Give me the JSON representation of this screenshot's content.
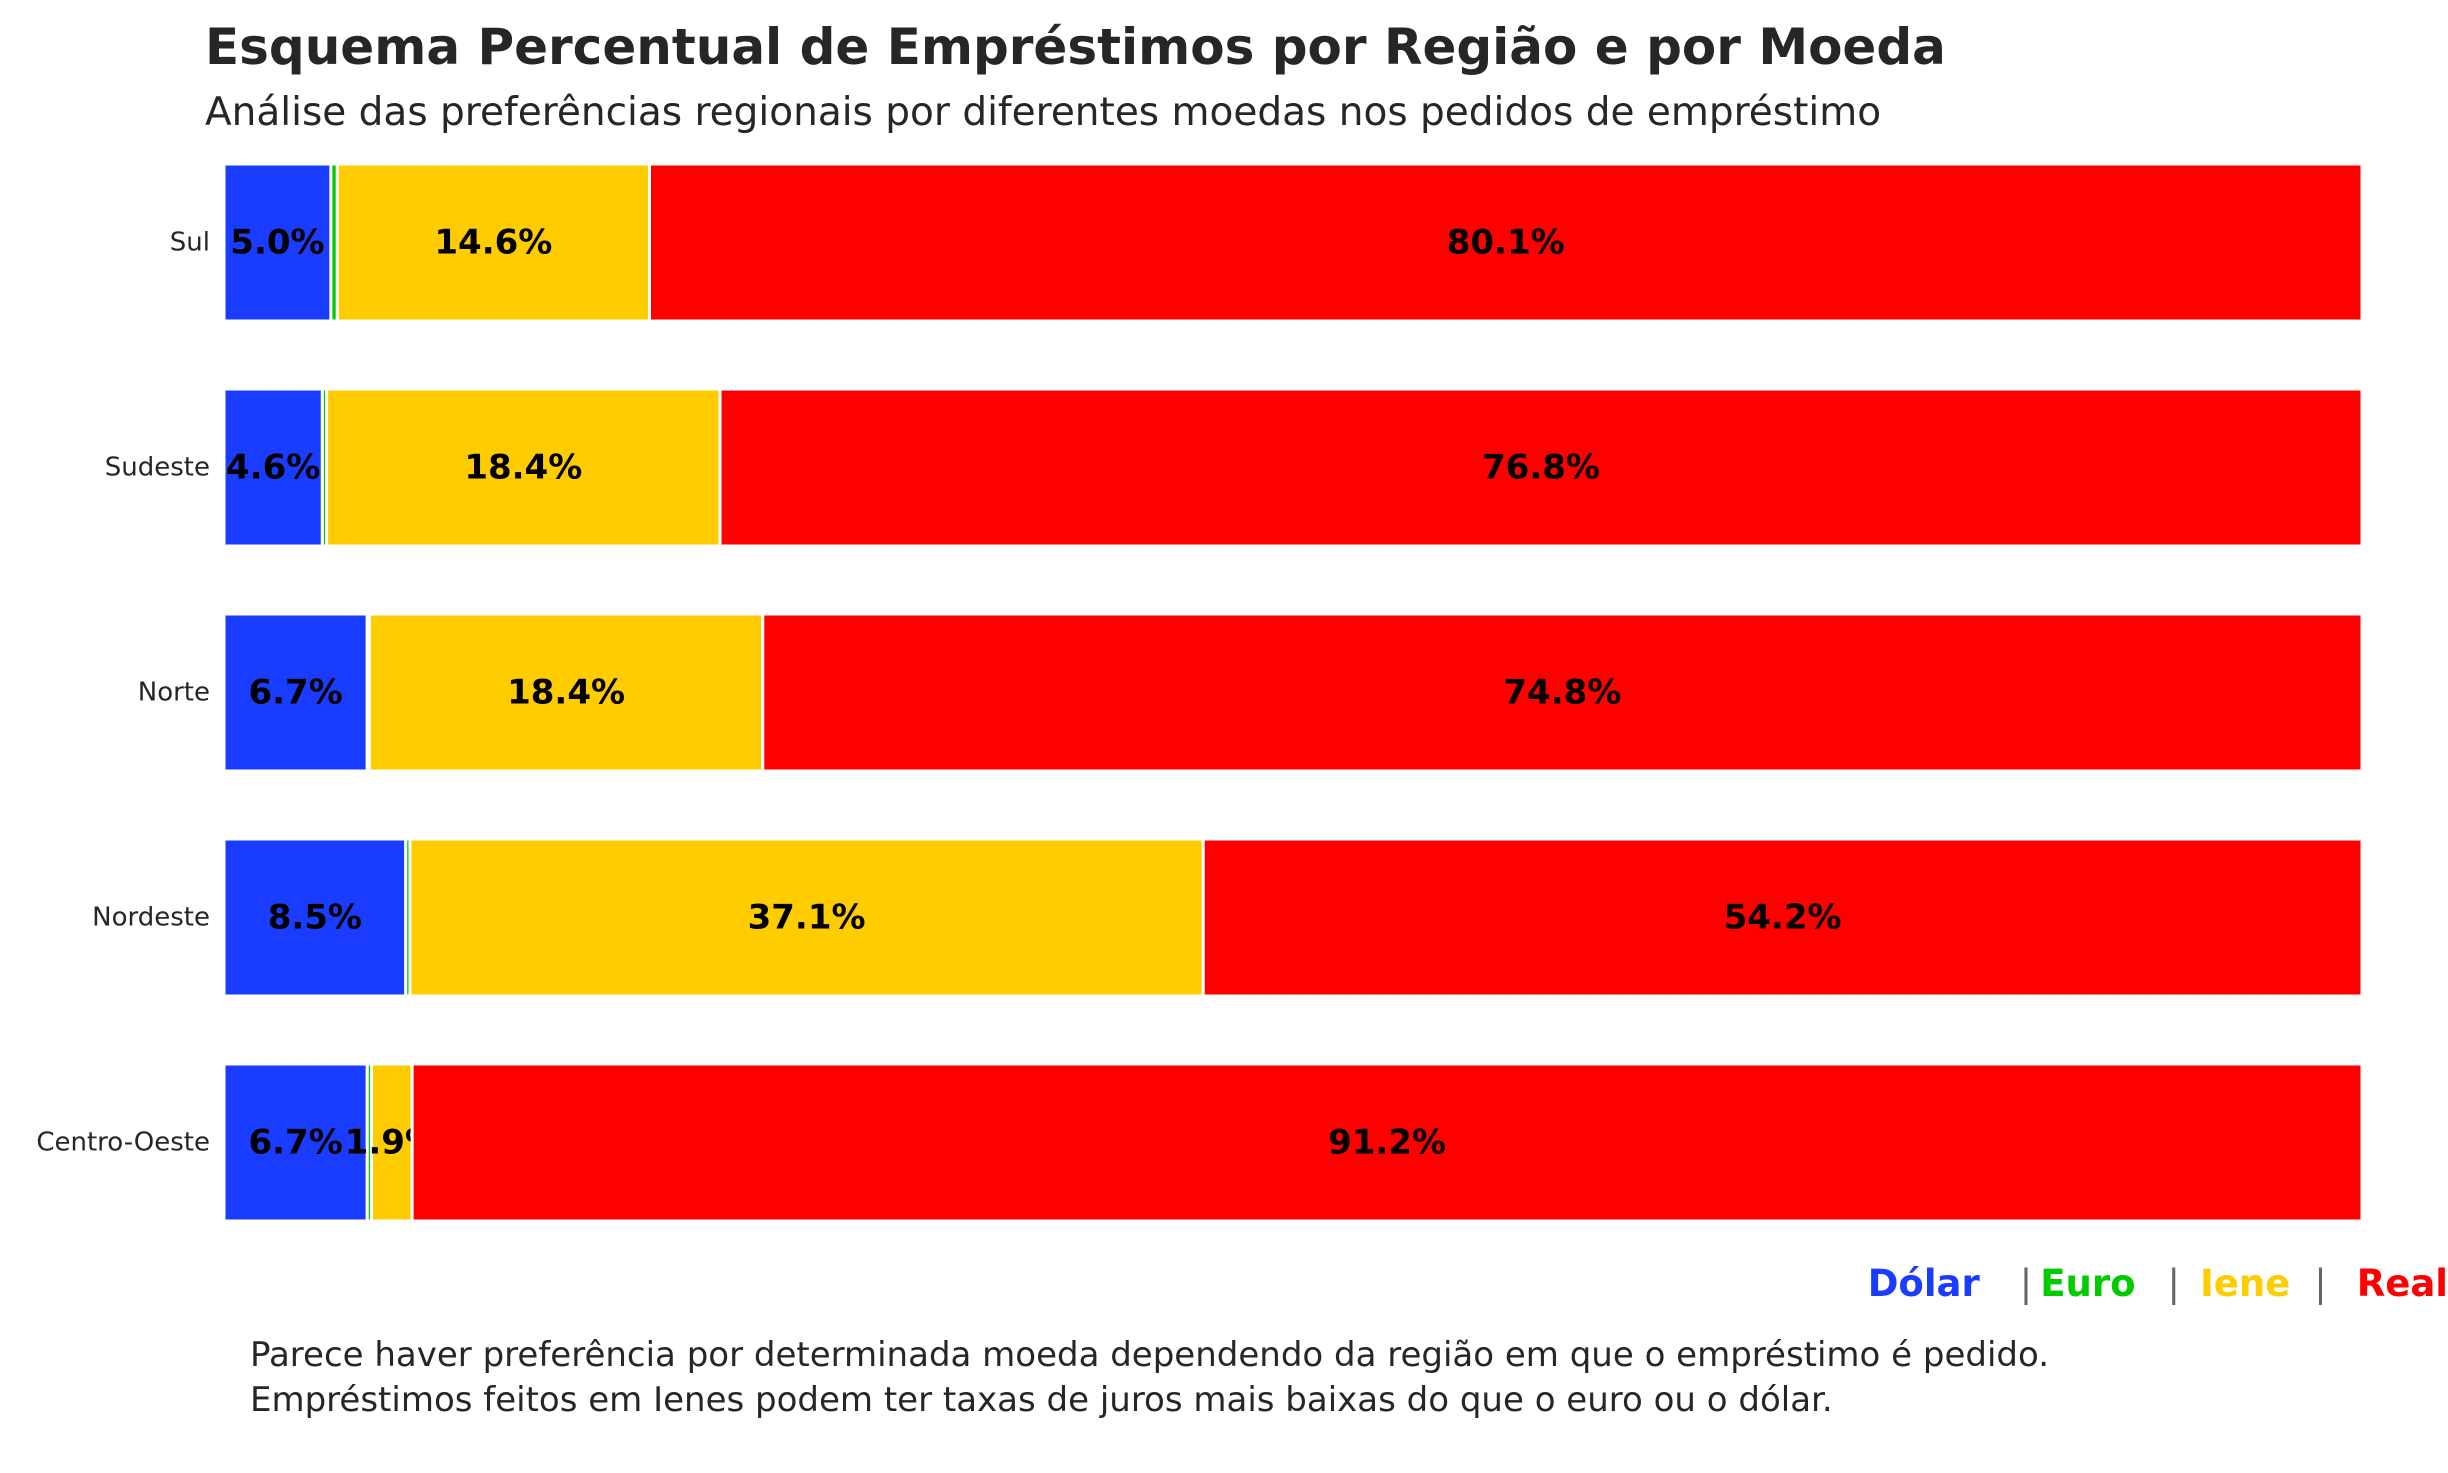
{
  "title": "Esquema Percentual de Empréstimos por Região e por Moeda",
  "subtitle": "Análise das preferências regionais por diferentes moedas nos pedidos de empréstimo",
  "legend": {
    "items": [
      {
        "label": "Dólar",
        "color": "#1a3cff"
      },
      {
        "label": "Euro",
        "color": "#00cc00"
      },
      {
        "label": "Iene",
        "color": "#ffcc00"
      },
      {
        "label": "Real",
        "color": "#ff0000"
      }
    ],
    "separator": "|"
  },
  "notes": [
    "Parece haver preferência por determinada moeda dependendo da região em que o empréstimo é pedido.",
    "Empréstimos feitos em Ienes podem ter taxas de juros mais baixas do que o euro ou o dólar."
  ],
  "chart_data": {
    "type": "bar",
    "orientation": "horizontal",
    "stacked": true,
    "title": "Esquema Percentual de Empréstimos por Região e por Moeda",
    "subtitle": "Análise das preferências regionais por diferentes moedas nos pedidos de empréstimo",
    "categories": [
      "Sul",
      "Sudeste",
      "Norte",
      "Nordeste",
      "Centro-Oeste"
    ],
    "series": [
      {
        "name": "Dólar",
        "color": "#1a3cff",
        "values": [
          5.0,
          4.6,
          6.7,
          8.5,
          6.7
        ]
      },
      {
        "name": "Euro",
        "color": "#00cc00",
        "values": [
          0.3,
          0.2,
          0.1,
          0.2,
          0.2
        ]
      },
      {
        "name": "Iene",
        "color": "#ffcc00",
        "values": [
          14.6,
          18.4,
          18.4,
          37.1,
          1.9
        ]
      },
      {
        "name": "Real",
        "color": "#ff0000",
        "values": [
          80.1,
          76.8,
          74.8,
          54.2,
          91.2
        ]
      }
    ],
    "data_labels": [
      [
        "5.0%",
        "",
        "14.6%",
        "80.1%"
      ],
      [
        "4.6%",
        "",
        "18.4%",
        "76.8%"
      ],
      [
        "6.7%",
        "",
        "18.4%",
        "74.8%"
      ],
      [
        "8.5%",
        "",
        "37.1%",
        "54.2%"
      ],
      [
        "6.7%",
        "",
        "1.9%",
        "91.2%"
      ]
    ],
    "xlim": [
      0,
      100
    ],
    "xlabel": "",
    "ylabel": "",
    "grid": false,
    "legend_position": "bottom-right"
  }
}
